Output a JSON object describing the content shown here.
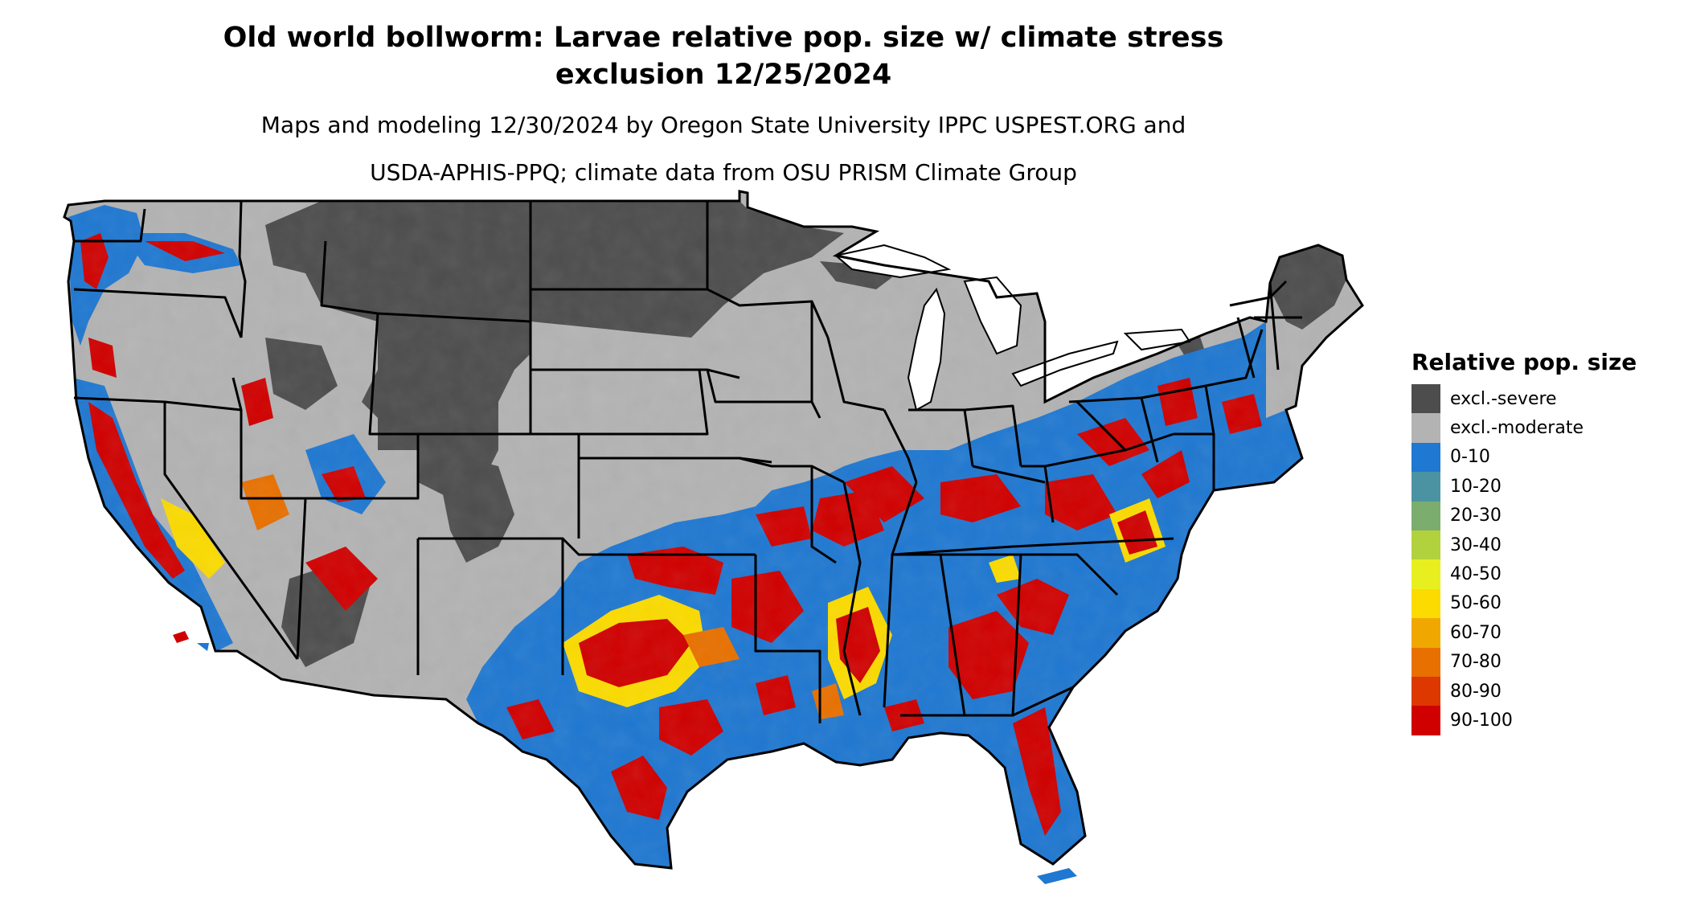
{
  "title_line1": "Old world bollworm: Larvae relative pop. size w/ climate stress",
  "title_line2": "exclusion 12/25/2024",
  "subtitle_line1": "Maps and modeling 12/30/2024 by Oregon State University IPPC USPEST.ORG and",
  "subtitle_line2": "USDA-APHIS-PPQ; climate data from OSU PRISM Climate Group",
  "legend": {
    "title": "Relative pop. size",
    "items": [
      {
        "label": "excl.-severe",
        "color": "#4d4d4d"
      },
      {
        "label": "excl.-moderate",
        "color": "#b3b3b3"
      },
      {
        "label": "0-10",
        "color": "#1f78d1"
      },
      {
        "label": "10-20",
        "color": "#4b93a3"
      },
      {
        "label": "20-30",
        "color": "#7aad6e"
      },
      {
        "label": "30-40",
        "color": "#b1d23d"
      },
      {
        "label": "40-50",
        "color": "#e8ef1f"
      },
      {
        "label": "50-60",
        "color": "#fbdb00"
      },
      {
        "label": "60-70",
        "color": "#f0a800"
      },
      {
        "label": "70-80",
        "color": "#e87000"
      },
      {
        "label": "80-90",
        "color": "#dc3800"
      },
      {
        "label": "90-100",
        "color": "#d00000"
      }
    ]
  }
}
